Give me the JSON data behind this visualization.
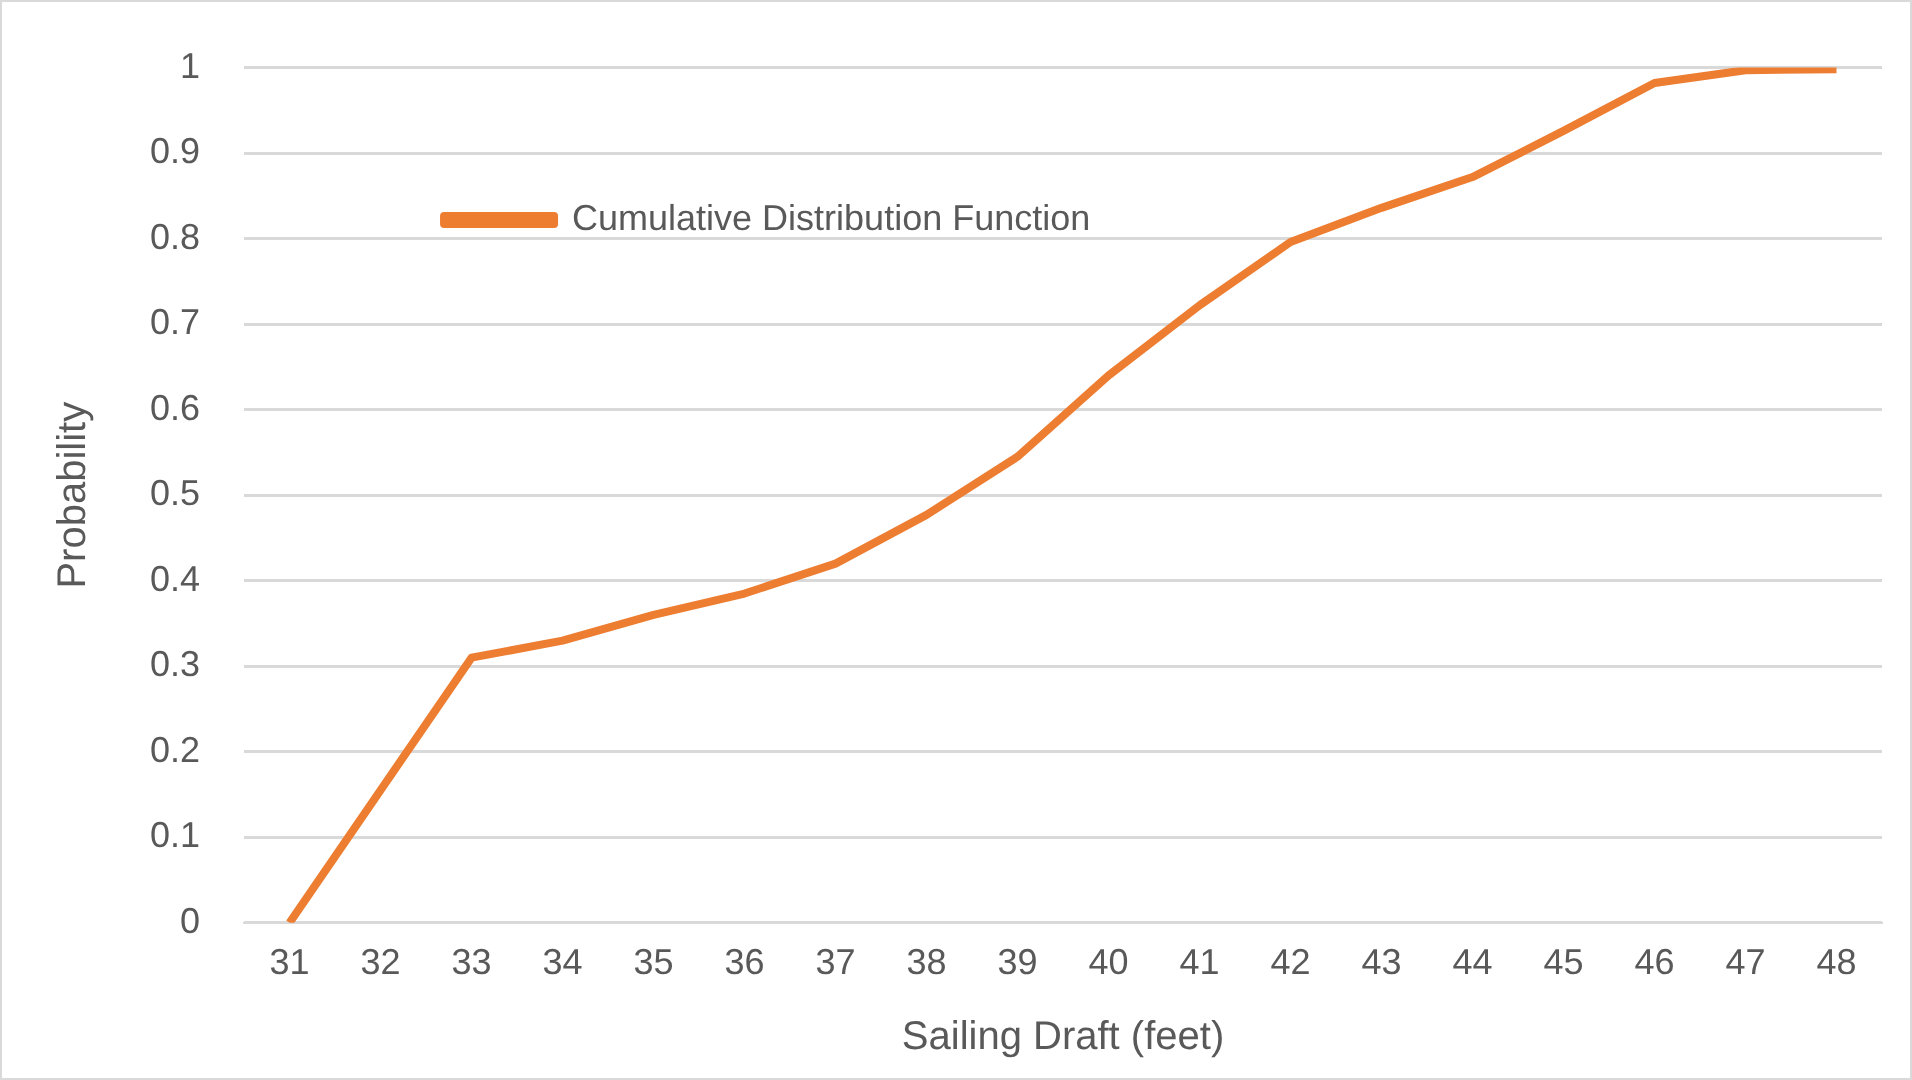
{
  "chart_data": {
    "type": "line",
    "xlabel": "Sailing Draft (feet)",
    "ylabel": "Probability",
    "categories": [
      "31",
      "32",
      "33",
      "34",
      "35",
      "36",
      "37",
      "38",
      "39",
      "40",
      "41",
      "42",
      "43",
      "44",
      "45",
      "46",
      "47",
      "48"
    ],
    "series": [
      {
        "name": "Cumulative Distribution Function",
        "color": "#ed7d31",
        "values": [
          0,
          0.155,
          0.31,
          0.33,
          0.36,
          0.385,
          0.42,
          0.477,
          0.545,
          0.64,
          0.722,
          0.796,
          0.836,
          0.872,
          0.926,
          0.982,
          0.997,
          0.998
        ]
      }
    ],
    "ylim": [
      0,
      1
    ],
    "yticks": [
      0,
      0.1,
      0.2,
      0.3,
      0.4,
      0.5,
      0.6,
      0.7,
      0.8,
      0.9,
      1
    ],
    "grid": "y",
    "legend": "top left",
    "marker": "none",
    "line_style": "solid"
  }
}
